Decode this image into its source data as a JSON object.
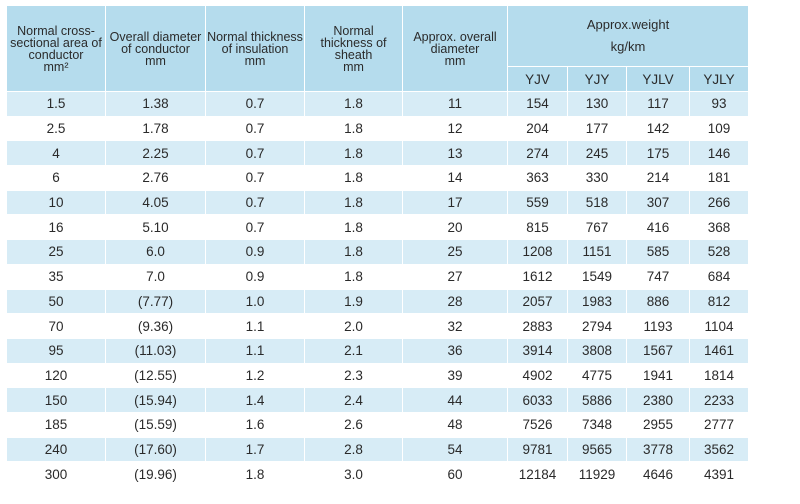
{
  "headers": {
    "area": [
      "Normal cross-",
      "sectional area of",
      "conductor",
      "mm²"
    ],
    "diameter": [
      "Overall diameter",
      "of conductor",
      "mm"
    ],
    "insulation": [
      "Normal thickness",
      "of insulation",
      "mm"
    ],
    "sheath": [
      "Normal",
      "thickness of",
      "sheath",
      "mm"
    ],
    "overall": [
      "Approx. overall",
      "diameter",
      "mm"
    ],
    "weight": [
      "Approx.weight",
      "kg/km"
    ],
    "types": [
      "YJV",
      "YJY",
      "YJLV",
      "YJLY"
    ]
  },
  "rows": [
    [
      "1.5",
      "1.38",
      "0.7",
      "1.8",
      "11",
      "154",
      "130",
      "117",
      "93"
    ],
    [
      "2.5",
      "1.78",
      "0.7",
      "1.8",
      "12",
      "204",
      "177",
      "142",
      "109"
    ],
    [
      "4",
      "2.25",
      "0.7",
      "1.8",
      "13",
      "274",
      "245",
      "175",
      "146"
    ],
    [
      "6",
      "2.76",
      "0.7",
      "1.8",
      "14",
      "363",
      "330",
      "214",
      "181"
    ],
    [
      "10",
      "4.05",
      "0.7",
      "1.8",
      "17",
      "559",
      "518",
      "307",
      "266"
    ],
    [
      "16",
      "5.10",
      "0.7",
      "1.8",
      "20",
      "815",
      "767",
      "416",
      "368"
    ],
    [
      "25",
      "6.0",
      "0.9",
      "1.8",
      "25",
      "1208",
      "1151",
      "585",
      "528"
    ],
    [
      "35",
      "7.0",
      "0.9",
      "1.8",
      "27",
      "1612",
      "1549",
      "747",
      "684"
    ],
    [
      "50",
      "(7.77)",
      "1.0",
      "1.9",
      "28",
      "2057",
      "1983",
      "886",
      "812"
    ],
    [
      "70",
      "(9.36)",
      "1.1",
      "2.0",
      "32",
      "2883",
      "2794",
      "1193",
      "1104"
    ],
    [
      "95",
      "(11.03)",
      "1.1",
      "2.1",
      "36",
      "3914",
      "3808",
      "1567",
      "1461"
    ],
    [
      "120",
      "(12.55)",
      "1.2",
      "2.3",
      "39",
      "4902",
      "4775",
      "1941",
      "1814"
    ],
    [
      "150",
      "(15.94)",
      "1.4",
      "2.4",
      "44",
      "6033",
      "5886",
      "2380",
      "2233"
    ],
    [
      "185",
      "(15.59)",
      "1.6",
      "2.6",
      "48",
      "7526",
      "7348",
      "2955",
      "2777"
    ],
    [
      "240",
      "(17.60)",
      "1.7",
      "2.8",
      "54",
      "9781",
      "9565",
      "3778",
      "3562"
    ],
    [
      "300",
      "(19.96)",
      "1.8",
      "3.0",
      "60",
      "12184",
      "11929",
      "4646",
      "4391"
    ]
  ]
}
